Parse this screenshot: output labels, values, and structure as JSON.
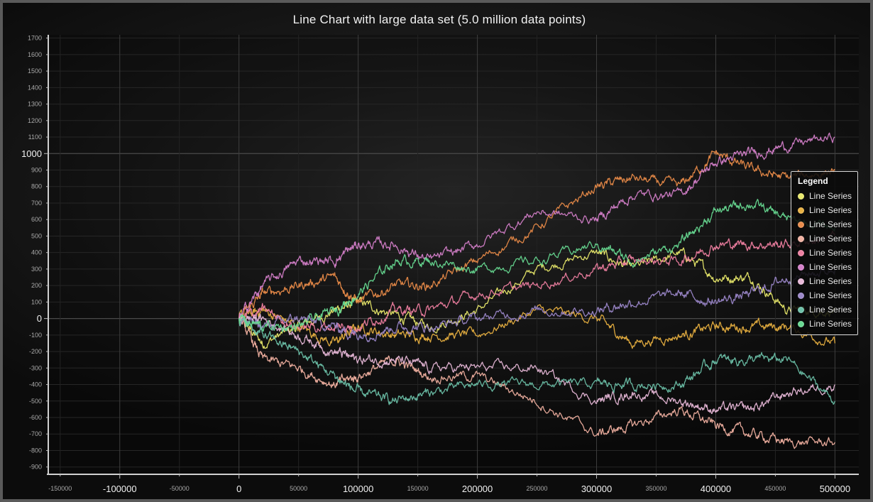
{
  "chart_data": {
    "type": "line",
    "title": "Line Chart with large data set (5.0 million data points)",
    "xlim": [
      -160000,
      520000
    ],
    "ylim": [
      -940,
      1720
    ],
    "grid": true,
    "x_major_ticks": [
      -100000,
      0,
      100000,
      200000,
      300000,
      400000,
      500000
    ],
    "x_minor_ticks": [
      -150000,
      -50000,
      50000,
      150000,
      250000,
      350000,
      450000
    ],
    "y_major_ticks": [
      0,
      1000
    ],
    "y_minor_ticks": [
      -900,
      -800,
      -700,
      -600,
      -500,
      -400,
      -300,
      -200,
      -100,
      100,
      200,
      300,
      400,
      500,
      600,
      700,
      800,
      900,
      1100,
      1200,
      1300,
      1400,
      1500,
      1600,
      1700
    ],
    "legend": {
      "title": "Legend",
      "position": "right"
    },
    "series": [
      {
        "name": "Line Series",
        "color": "#e8e86a",
        "x": [
          0,
          20000,
          50000,
          80000,
          100000,
          130000,
          160000,
          200000,
          250000,
          300000,
          330000,
          370000,
          400000,
          430000,
          460000,
          500000
        ],
        "y": [
          0,
          -150,
          -50,
          50,
          100,
          20,
          -50,
          50,
          300,
          400,
          300,
          400,
          250,
          250,
          50,
          50
        ]
      },
      {
        "name": "Line Series",
        "color": "#e8b040",
        "x": [
          0,
          20000,
          50000,
          80000,
          100000,
          130000,
          160000,
          200000,
          250000,
          300000,
          330000,
          370000,
          400000,
          430000,
          460000,
          500000
        ],
        "y": [
          0,
          50,
          -50,
          -150,
          -50,
          -100,
          -100,
          -100,
          50,
          0,
          -150,
          -100,
          -50,
          -50,
          -50,
          -150
        ]
      },
      {
        "name": "Line Series",
        "color": "#e88a48",
        "x": [
          0,
          20000,
          50000,
          80000,
          100000,
          130000,
          160000,
          200000,
          250000,
          300000,
          330000,
          370000,
          400000,
          430000,
          460000,
          500000
        ],
        "y": [
          0,
          150,
          200,
          250,
          100,
          200,
          200,
          350,
          550,
          800,
          850,
          800,
          1000,
          900,
          850,
          900
        ]
      },
      {
        "name": "Line Series",
        "color": "#f0b0a0",
        "x": [
          0,
          20000,
          50000,
          80000,
          100000,
          130000,
          160000,
          200000,
          250000,
          300000,
          330000,
          370000,
          400000,
          430000,
          460000,
          500000
        ],
        "y": [
          0,
          -250,
          -300,
          -400,
          -350,
          -250,
          -350,
          -350,
          -500,
          -700,
          -650,
          -550,
          -650,
          -700,
          -750,
          -750
        ]
      },
      {
        "name": "Line Series",
        "color": "#ee7ea0",
        "x": [
          0,
          20000,
          50000,
          80000,
          100000,
          130000,
          160000,
          200000,
          250000,
          300000,
          330000,
          370000,
          400000,
          430000,
          460000,
          500000
        ],
        "y": [
          0,
          50,
          -50,
          -50,
          -50,
          50,
          50,
          150,
          200,
          300,
          350,
          350,
          450,
          450,
          450,
          500
        ]
      },
      {
        "name": "Line Series",
        "color": "#d37ec8",
        "x": [
          0,
          20000,
          50000,
          80000,
          100000,
          130000,
          160000,
          200000,
          250000,
          300000,
          330000,
          370000,
          400000,
          430000,
          460000,
          500000
        ],
        "y": [
          0,
          200,
          350,
          350,
          450,
          450,
          350,
          450,
          650,
          600,
          750,
          750,
          950,
          1000,
          1050,
          1100
        ]
      },
      {
        "name": "Line Series",
        "color": "#e8b8d8",
        "x": [
          0,
          20000,
          50000,
          80000,
          100000,
          130000,
          160000,
          200000,
          250000,
          300000,
          330000,
          370000,
          400000,
          430000,
          460000,
          500000
        ],
        "y": [
          0,
          0,
          -100,
          -200,
          -250,
          -250,
          -300,
          -300,
          -300,
          -500,
          -450,
          -500,
          -550,
          -550,
          -450,
          -400
        ]
      },
      {
        "name": "Line Series",
        "color": "#9a86c8",
        "x": [
          0,
          20000,
          50000,
          80000,
          100000,
          130000,
          160000,
          200000,
          250000,
          300000,
          330000,
          370000,
          400000,
          430000,
          460000,
          500000
        ],
        "y": [
          0,
          -50,
          0,
          -50,
          -100,
          -50,
          -50,
          0,
          50,
          50,
          100,
          150,
          100,
          150,
          250,
          300
        ]
      },
      {
        "name": "Line Series",
        "color": "#6cc0a8",
        "x": [
          0,
          20000,
          50000,
          80000,
          100000,
          130000,
          160000,
          200000,
          250000,
          300000,
          330000,
          370000,
          400000,
          430000,
          460000,
          500000
        ],
        "y": [
          0,
          -100,
          -200,
          -350,
          -450,
          -500,
          -450,
          -400,
          -400,
          -400,
          -400,
          -400,
          -250,
          -250,
          -250,
          -500
        ]
      },
      {
        "name": "Line Series",
        "color": "#66d890",
        "x": [
          0,
          20000,
          50000,
          80000,
          100000,
          130000,
          160000,
          200000,
          250000,
          300000,
          330000,
          370000,
          400000,
          430000,
          460000,
          500000
        ],
        "y": [
          0,
          -50,
          -50,
          50,
          150,
          350,
          350,
          300,
          350,
          450,
          350,
          450,
          650,
          700,
          600,
          550
        ]
      }
    ]
  }
}
